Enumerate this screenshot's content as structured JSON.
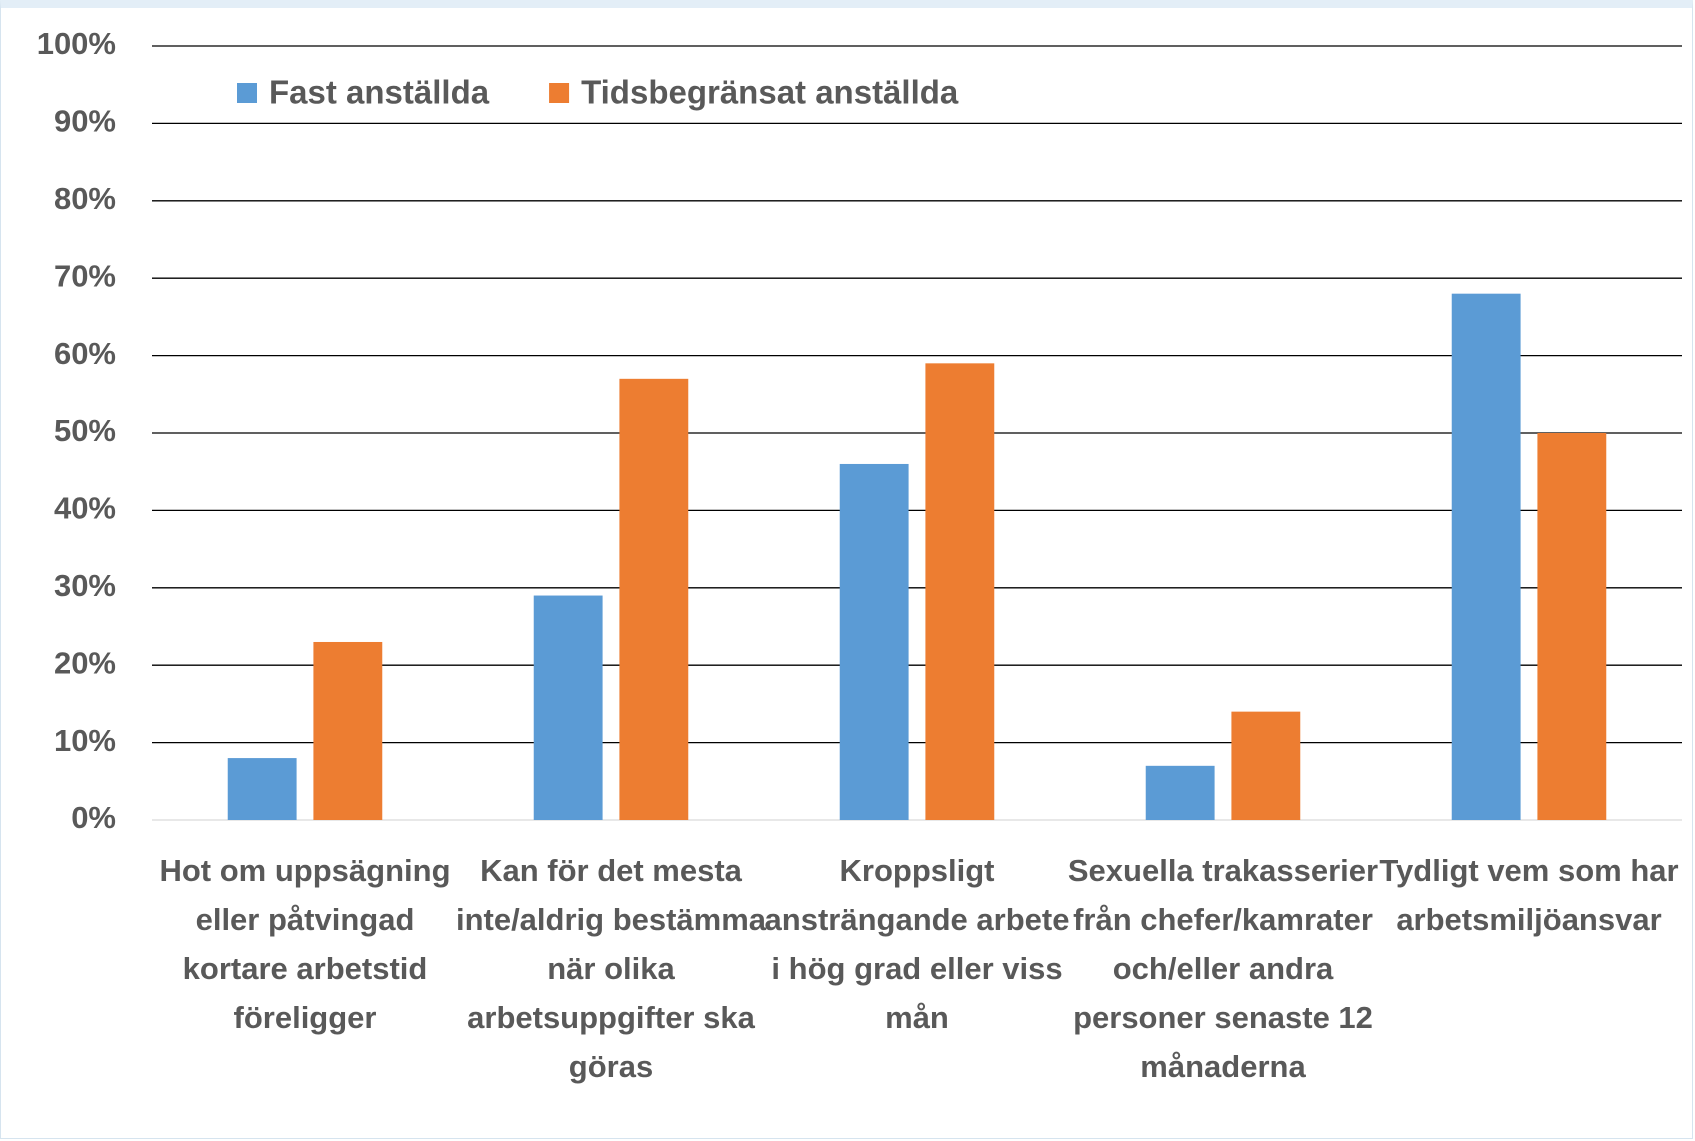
{
  "chart_data": {
    "type": "bar",
    "categories": [
      "Hot om uppsägning eller påtvingad kortare arbetstid föreligger",
      "Kan för det mesta inte/aldrig bestämma när olika arbetsuppgifter ska göras",
      "Kroppsligt ansträngande arbete i hög grad eller viss mån",
      "Sexuella trakasserier från chefer/kamrater och/eller andra personer senaste 12 månaderna",
      "Tydligt vem som har arbetsmiljöansvar"
    ],
    "series": [
      {
        "name": "Fast anställda",
        "color": "#5b9bd5",
        "values": [
          8,
          29,
          46,
          7,
          68
        ]
      },
      {
        "name": "Tidsbegränsat anställda",
        "color": "#ed7d31",
        "values": [
          23,
          57,
          59,
          14,
          50
        ]
      }
    ],
    "ylim": [
      0,
      100
    ],
    "yticks": [
      {
        "value": 0,
        "label": "0%"
      },
      {
        "value": 10,
        "label": "10%"
      },
      {
        "value": 20,
        "label": "20%"
      },
      {
        "value": 30,
        "label": "30%"
      },
      {
        "value": 40,
        "label": "40%"
      },
      {
        "value": 50,
        "label": "50%"
      },
      {
        "value": 60,
        "label": "60%"
      },
      {
        "value": 70,
        "label": "70%"
      },
      {
        "value": 80,
        "label": "80%"
      },
      {
        "value": 90,
        "label": "90%"
      },
      {
        "value": 100,
        "label": "100%"
      }
    ],
    "grid": true,
    "legend": "top-left"
  }
}
